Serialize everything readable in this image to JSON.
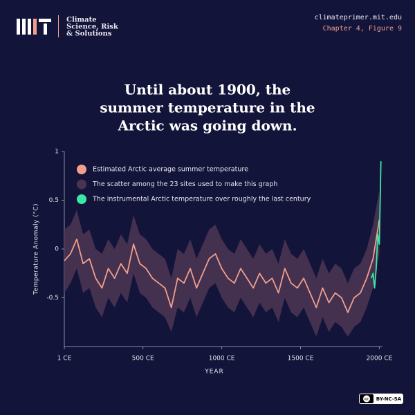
{
  "header": {
    "brand": [
      "Climate",
      "Science, Risk",
      "& Solutions"
    ],
    "url": "climateprimer.mit.edu",
    "figure": "Chapter 4, Figure 9"
  },
  "chart_data": {
    "type": "line",
    "title": [
      "Until about 1900, the",
      "summer temperature in the",
      "Arctic was going down."
    ],
    "xlabel": "YEAR",
    "ylabel": "Temperature Anomaly (°C)",
    "xlim": [
      1,
      2020
    ],
    "ylim": [
      -1,
      1
    ],
    "xticks": [
      {
        "value": 1,
        "label": "1 CE"
      },
      {
        "value": 500,
        "label": "500 CE"
      },
      {
        "value": 1000,
        "label": "1000 CE"
      },
      {
        "value": 1500,
        "label": "1500 CE"
      },
      {
        "value": 2000,
        "label": "2000 CE"
      }
    ],
    "yticks": [
      1,
      0.5,
      0,
      -0.5
    ],
    "legend": "upper left",
    "series": [
      {
        "name": "Estimated Arctic average summer temperature",
        "color": "#f2a08c",
        "x": [
          1,
          40,
          80,
          120,
          160,
          200,
          240,
          280,
          320,
          360,
          400,
          440,
          480,
          520,
          560,
          600,
          640,
          680,
          720,
          760,
          800,
          840,
          880,
          920,
          960,
          1000,
          1040,
          1080,
          1120,
          1160,
          1200,
          1240,
          1280,
          1320,
          1360,
          1400,
          1440,
          1480,
          1520,
          1560,
          1600,
          1640,
          1680,
          1720,
          1760,
          1800,
          1840,
          1880,
          1920,
          1960,
          2000
        ],
        "values": [
          -0.12,
          -0.05,
          0.1,
          -0.15,
          -0.1,
          -0.3,
          -0.4,
          -0.2,
          -0.3,
          -0.15,
          -0.25,
          0.05,
          -0.15,
          -0.2,
          -0.3,
          -0.35,
          -0.4,
          -0.6,
          -0.3,
          -0.35,
          -0.2,
          -0.4,
          -0.25,
          -0.1,
          -0.05,
          -0.2,
          -0.3,
          -0.35,
          -0.2,
          -0.3,
          -0.4,
          -0.25,
          -0.35,
          -0.3,
          -0.45,
          -0.2,
          -0.35,
          -0.4,
          -0.3,
          -0.45,
          -0.6,
          -0.4,
          -0.55,
          -0.45,
          -0.5,
          -0.65,
          -0.5,
          -0.45,
          -0.3,
          -0.1,
          0.3
        ]
      },
      {
        "name": "The scatter among the 23 sites used to make this graph",
        "color": "#4a3352",
        "type": "band",
        "x": [
          1,
          40,
          80,
          120,
          160,
          200,
          240,
          280,
          320,
          360,
          400,
          440,
          480,
          520,
          560,
          600,
          640,
          680,
          720,
          760,
          800,
          840,
          880,
          920,
          960,
          1000,
          1040,
          1080,
          1120,
          1160,
          1200,
          1240,
          1280,
          1320,
          1360,
          1400,
          1440,
          1480,
          1520,
          1560,
          1600,
          1640,
          1680,
          1720,
          1760,
          1800,
          1840,
          1880,
          1920,
          1960,
          2000
        ],
        "upper": [
          0.2,
          0.25,
          0.4,
          0.15,
          0.2,
          0.0,
          -0.05,
          0.1,
          0.0,
          0.15,
          0.05,
          0.35,
          0.15,
          0.1,
          0.0,
          -0.05,
          -0.1,
          -0.3,
          0.0,
          -0.05,
          0.1,
          -0.1,
          0.05,
          0.2,
          0.25,
          0.1,
          0.0,
          -0.05,
          0.1,
          0.0,
          -0.1,
          0.05,
          -0.05,
          0.0,
          -0.15,
          0.1,
          -0.05,
          -0.1,
          0.0,
          -0.15,
          -0.3,
          -0.1,
          -0.25,
          -0.15,
          -0.2,
          -0.35,
          -0.2,
          -0.15,
          0.0,
          0.25,
          0.6
        ],
        "lower": [
          -0.45,
          -0.35,
          -0.2,
          -0.45,
          -0.4,
          -0.6,
          -0.7,
          -0.5,
          -0.6,
          -0.45,
          -0.55,
          -0.25,
          -0.45,
          -0.5,
          -0.6,
          -0.65,
          -0.7,
          -0.85,
          -0.6,
          -0.65,
          -0.5,
          -0.7,
          -0.55,
          -0.4,
          -0.35,
          -0.5,
          -0.6,
          -0.65,
          -0.5,
          -0.6,
          -0.7,
          -0.55,
          -0.65,
          -0.6,
          -0.75,
          -0.5,
          -0.65,
          -0.7,
          -0.6,
          -0.75,
          -0.9,
          -0.7,
          -0.85,
          -0.75,
          -0.8,
          -0.9,
          -0.8,
          -0.75,
          -0.6,
          -0.4,
          -0.05
        ]
      },
      {
        "name": "The instrumental Arctic temperature over roughly the last century",
        "color": "#3ee6a6",
        "x": [
          1950,
          1960,
          1970,
          1980,
          1990,
          2000,
          2010
        ],
        "values": [
          -0.3,
          -0.25,
          -0.4,
          -0.2,
          0.15,
          0.05,
          0.9
        ]
      }
    ]
  },
  "footer": {
    "license": "BY-NC-SA"
  }
}
